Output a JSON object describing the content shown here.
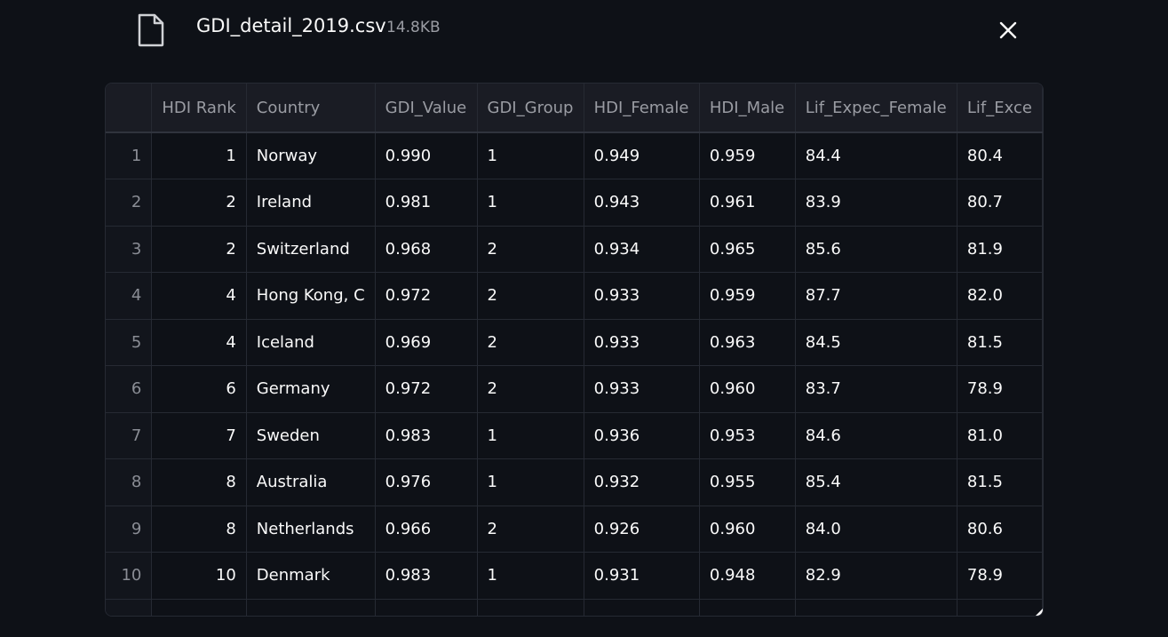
{
  "dialog": {
    "file_name": "GDI_detail_2019.csv",
    "file_size": "14.8KB",
    "file_icon": "file-icon",
    "close_icon": "close-icon"
  },
  "table": {
    "columns": [
      "",
      "HDI Rank",
      "Country",
      "GDI_Value",
      "GDI_Group",
      "HDI_Female",
      "HDI_Male",
      "Lif_Expec_Female",
      "Lif_Exce"
    ],
    "rows": [
      [
        "1",
        "1",
        "Norway",
        "0.990",
        "1",
        "0.949",
        "0.959",
        "84.4",
        "80.4"
      ],
      [
        "2",
        "2",
        "Ireland",
        "0.981",
        "1",
        "0.943",
        "0.961",
        "83.9",
        "80.7"
      ],
      [
        "3",
        "2",
        "Switzerland",
        "0.968",
        "2",
        "0.934",
        "0.965",
        "85.6",
        "81.9"
      ],
      [
        "4",
        "4",
        "Hong Kong, C",
        "0.972",
        "2",
        "0.933",
        "0.959",
        "87.7",
        "82.0"
      ],
      [
        "5",
        "4",
        "Iceland",
        "0.969",
        "2",
        "0.933",
        "0.963",
        "84.5",
        "81.5"
      ],
      [
        "6",
        "6",
        "Germany",
        "0.972",
        "2",
        "0.933",
        "0.960",
        "83.7",
        "78.9"
      ],
      [
        "7",
        "7",
        "Sweden",
        "0.983",
        "1",
        "0.936",
        "0.953",
        "84.6",
        "81.0"
      ],
      [
        "8",
        "8",
        "Australia",
        "0.976",
        "1",
        "0.932",
        "0.955",
        "85.4",
        "81.5"
      ],
      [
        "9",
        "8",
        "Netherlands",
        "0.966",
        "2",
        "0.926",
        "0.960",
        "84.0",
        "80.6"
      ],
      [
        "10",
        "10",
        "Denmark",
        "0.983",
        "1",
        "0.931",
        "0.948",
        "82.9",
        "78.9"
      ],
      [
        "",
        "",
        "",
        "",
        "",
        "",
        "",
        "",
        ""
      ]
    ]
  }
}
